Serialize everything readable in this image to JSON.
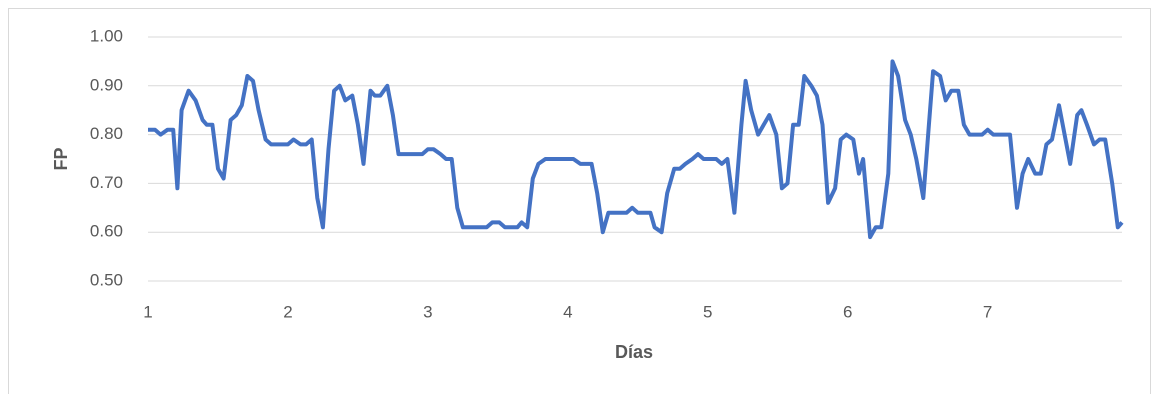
{
  "chart_data": {
    "type": "line",
    "xlabel": "Días",
    "ylabel": "FP",
    "x": [
      1.0,
      1.05,
      1.09,
      1.14,
      1.18,
      1.21,
      1.24,
      1.29,
      1.34,
      1.39,
      1.42,
      1.46,
      1.5,
      1.54,
      1.59,
      1.63,
      1.67,
      1.71,
      1.75,
      1.79,
      1.84,
      1.88,
      1.92,
      1.96,
      2.0,
      2.04,
      2.09,
      2.13,
      2.17,
      2.21,
      2.25,
      2.29,
      2.33,
      2.37,
      2.41,
      2.46,
      2.5,
      2.54,
      2.59,
      2.62,
      2.66,
      2.71,
      2.75,
      2.79,
      2.84,
      2.88,
      2.92,
      2.96,
      3.0,
      3.04,
      3.09,
      3.13,
      3.17,
      3.21,
      3.25,
      3.29,
      3.34,
      3.38,
      3.42,
      3.46,
      3.51,
      3.55,
      3.59,
      3.64,
      3.67,
      3.71,
      3.75,
      3.79,
      3.84,
      3.88,
      3.92,
      3.96,
      4.01,
      4.04,
      4.09,
      4.13,
      4.17,
      4.21,
      4.25,
      4.29,
      4.34,
      4.38,
      4.42,
      4.46,
      4.5,
      4.54,
      4.59,
      4.62,
      4.67,
      4.71,
      4.76,
      4.8,
      4.84,
      4.89,
      4.93,
      4.97,
      5.01,
      5.06,
      5.1,
      5.14,
      5.19,
      5.24,
      5.27,
      5.31,
      5.36,
      5.4,
      5.44,
      5.49,
      5.53,
      5.57,
      5.61,
      5.65,
      5.69,
      5.74,
      5.78,
      5.82,
      5.86,
      5.91,
      5.95,
      5.99,
      6.04,
      6.08,
      6.11,
      6.16,
      6.2,
      6.24,
      6.29,
      6.32,
      6.36,
      6.41,
      6.45,
      6.49,
      6.54,
      6.58,
      6.61,
      6.66,
      6.7,
      6.74,
      6.79,
      6.83,
      6.87,
      6.91,
      6.96,
      7.0,
      7.04,
      7.09,
      7.13,
      7.16,
      7.21,
      7.25,
      7.29,
      7.34,
      7.38,
      7.42,
      7.46,
      7.51,
      7.55,
      7.59,
      7.64,
      7.67,
      7.71,
      7.76,
      7.8,
      7.84,
      7.89,
      7.93,
      7.96
    ],
    "series": [
      {
        "name": "FP",
        "color": "#4472c4",
        "values": [
          0.81,
          0.81,
          0.8,
          0.81,
          0.81,
          0.69,
          0.85,
          0.89,
          0.87,
          0.83,
          0.82,
          0.82,
          0.73,
          0.71,
          0.83,
          0.84,
          0.86,
          0.92,
          0.91,
          0.85,
          0.79,
          0.78,
          0.78,
          0.78,
          0.78,
          0.79,
          0.78,
          0.78,
          0.79,
          0.67,
          0.61,
          0.77,
          0.89,
          0.9,
          0.87,
          0.88,
          0.82,
          0.74,
          0.89,
          0.88,
          0.88,
          0.9,
          0.84,
          0.76,
          0.76,
          0.76,
          0.76,
          0.76,
          0.77,
          0.77,
          0.76,
          0.75,
          0.75,
          0.65,
          0.61,
          0.61,
          0.61,
          0.61,
          0.61,
          0.62,
          0.62,
          0.61,
          0.61,
          0.61,
          0.62,
          0.61,
          0.71,
          0.74,
          0.75,
          0.75,
          0.75,
          0.75,
          0.75,
          0.75,
          0.74,
          0.74,
          0.74,
          0.68,
          0.6,
          0.64,
          0.64,
          0.64,
          0.64,
          0.65,
          0.64,
          0.64,
          0.64,
          0.61,
          0.6,
          0.68,
          0.73,
          0.73,
          0.74,
          0.75,
          0.76,
          0.75,
          0.75,
          0.75,
          0.74,
          0.75,
          0.64,
          0.82,
          0.91,
          0.85,
          0.8,
          0.82,
          0.84,
          0.8,
          0.69,
          0.7,
          0.82,
          0.82,
          0.92,
          0.9,
          0.88,
          0.82,
          0.66,
          0.69,
          0.79,
          0.8,
          0.79,
          0.72,
          0.75,
          0.59,
          0.61,
          0.61,
          0.72,
          0.95,
          0.92,
          0.83,
          0.8,
          0.75,
          0.67,
          0.82,
          0.93,
          0.92,
          0.87,
          0.89,
          0.89,
          0.82,
          0.8,
          0.8,
          0.8,
          0.81,
          0.8,
          0.8,
          0.8,
          0.8,
          0.65,
          0.72,
          0.75,
          0.72,
          0.72,
          0.78,
          0.79,
          0.86,
          0.8,
          0.74,
          0.84,
          0.85,
          0.82,
          0.78,
          0.79,
          0.79,
          0.7,
          0.61,
          0.62
        ]
      }
    ],
    "xlim": [
      1,
      7.96
    ],
    "xticks": [
      1,
      2,
      3,
      4,
      5,
      6,
      7
    ],
    "ylim": [
      0.5,
      1.0
    ],
    "yticks": [
      {
        "value": 0.5,
        "label": "0.50"
      },
      {
        "value": 0.6,
        "label": "0.60"
      },
      {
        "value": 0.7,
        "label": "0.70"
      },
      {
        "value": 0.8,
        "label": "0.80"
      },
      {
        "value": 0.9,
        "label": "0.90"
      },
      {
        "value": 1.0,
        "label": "1.00"
      }
    ],
    "grid": true
  }
}
